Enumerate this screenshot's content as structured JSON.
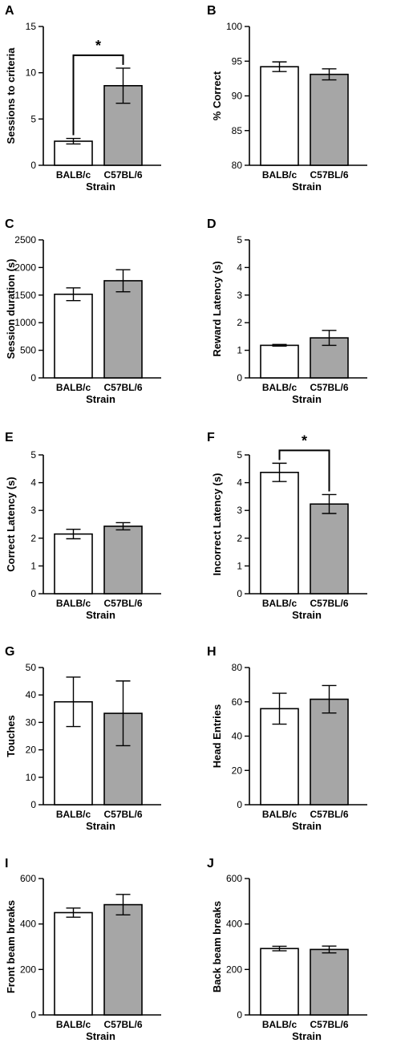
{
  "colors": {
    "balb": "#ffffff",
    "c57": "#a6a6a6",
    "stroke": "#000000"
  },
  "chart_data": [
    {
      "panel": "A",
      "type": "bar",
      "categories": [
        "BALB/c",
        "C57BL/6"
      ],
      "values": [
        2.6,
        8.6
      ],
      "errors": [
        0.3,
        1.9
      ],
      "xlabel": "Strain",
      "ylabel": "Sessions to criteria",
      "ylim": [
        0,
        15
      ],
      "yticks": [
        0,
        5,
        10,
        15
      ],
      "yticklabels": [
        "0",
        "5",
        "10",
        "15"
      ],
      "significance": "*"
    },
    {
      "panel": "B",
      "type": "bar",
      "categories": [
        "BALB/c",
        "C57BL/6"
      ],
      "values": [
        94.2,
        93.1
      ],
      "errors": [
        0.7,
        0.8
      ],
      "xlabel": "Strain",
      "ylabel": "% Correct",
      "ylim": [
        80,
        100
      ],
      "yticks": [
        80,
        85,
        90,
        95,
        100
      ],
      "yticklabels": [
        "80",
        "85",
        "90",
        "95",
        "100"
      ],
      "significance": ""
    },
    {
      "panel": "C",
      "type": "bar",
      "categories": [
        "BALB/c",
        "C57BL/6"
      ],
      "values": [
        1515,
        1760
      ],
      "errors": [
        115,
        200
      ],
      "xlabel": "Strain",
      "ylabel": "Session duration (s)",
      "ylim": [
        0,
        2500
      ],
      "yticks": [
        0,
        500,
        1000,
        1500,
        2000,
        2500
      ],
      "yticklabels": [
        "0",
        "500",
        "1000",
        "1500",
        "2000",
        "2500"
      ],
      "significance": ""
    },
    {
      "panel": "D",
      "type": "bar",
      "categories": [
        "BALB/c",
        "C57BL/6"
      ],
      "values": [
        1.18,
        1.45
      ],
      "errors": [
        0.03,
        0.27
      ],
      "xlabel": "Strain",
      "ylabel": "Reward Latency (s)",
      "ylim": [
        0,
        5
      ],
      "yticks": [
        0,
        1,
        2,
        3,
        4,
        5
      ],
      "yticklabels": [
        "0",
        "1",
        "2",
        "3",
        "4",
        "5"
      ],
      "significance": ""
    },
    {
      "panel": "E",
      "type": "bar",
      "categories": [
        "BALB/c",
        "C57BL/6"
      ],
      "values": [
        2.15,
        2.43
      ],
      "errors": [
        0.17,
        0.13
      ],
      "xlabel": "Strain",
      "ylabel": "Correct Latency (s)",
      "ylim": [
        0,
        5
      ],
      "yticks": [
        0,
        1,
        2,
        3,
        4,
        5
      ],
      "yticklabels": [
        "0",
        "1",
        "2",
        "3",
        "4",
        "5"
      ],
      "significance": ""
    },
    {
      "panel": "F",
      "type": "bar",
      "categories": [
        "BALB/c",
        "C57BL/6"
      ],
      "values": [
        4.37,
        3.23
      ],
      "errors": [
        0.33,
        0.34
      ],
      "xlabel": "Strain",
      "ylabel": "Incorrect Latency (s)",
      "ylim": [
        0,
        5
      ],
      "yticks": [
        0,
        1,
        2,
        3,
        4,
        5
      ],
      "yticklabels": [
        "0",
        "1",
        "2",
        "3",
        "4",
        "5"
      ],
      "significance": "*"
    },
    {
      "panel": "G",
      "type": "bar",
      "categories": [
        "BALB/c",
        "C57BL/6"
      ],
      "values": [
        37.5,
        33.3
      ],
      "errors": [
        9.0,
        11.8
      ],
      "xlabel": "Strain",
      "ylabel": "Touches",
      "ylim": [
        0,
        50
      ],
      "yticks": [
        0,
        10,
        20,
        30,
        40,
        50
      ],
      "yticklabels": [
        "0",
        "10",
        "20",
        "30",
        "40",
        "50"
      ],
      "significance": ""
    },
    {
      "panel": "H",
      "type": "bar",
      "categories": [
        "BALB/c",
        "C57BL/6"
      ],
      "values": [
        56,
        61.5
      ],
      "errors": [
        9,
        8
      ],
      "xlabel": "Strain",
      "ylabel": "Head Entries",
      "ylim": [
        0,
        80
      ],
      "yticks": [
        0,
        20,
        40,
        60,
        80
      ],
      "yticklabels": [
        "0",
        "20",
        "40",
        "60",
        "80"
      ],
      "significance": ""
    },
    {
      "panel": "I",
      "type": "bar",
      "categories": [
        "BALB/c",
        "C57BL/6"
      ],
      "values": [
        450,
        485
      ],
      "errors": [
        20,
        45
      ],
      "xlabel": "Strain",
      "ylabel": "Front beam breaks",
      "ylim": [
        0,
        600
      ],
      "yticks": [
        0,
        200,
        400,
        600
      ],
      "yticklabels": [
        "0",
        "200",
        "400",
        "600"
      ],
      "significance": ""
    },
    {
      "panel": "J",
      "type": "bar",
      "categories": [
        "BALB/c",
        "C57BL/6"
      ],
      "values": [
        292,
        288
      ],
      "errors": [
        10,
        15
      ],
      "xlabel": "Strain",
      "ylabel": "Back beam breaks",
      "ylim": [
        0,
        600
      ],
      "yticks": [
        0,
        200,
        400,
        600
      ],
      "yticklabels": [
        "0",
        "200",
        "400",
        "600"
      ],
      "significance": ""
    }
  ]
}
